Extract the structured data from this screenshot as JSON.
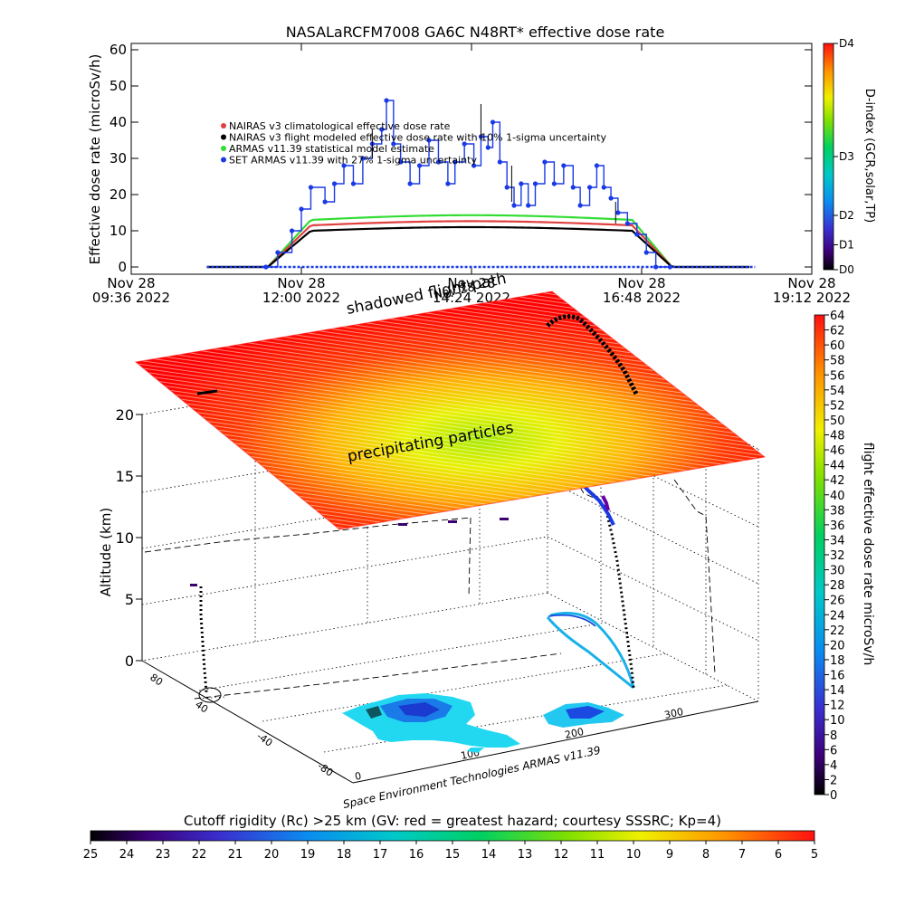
{
  "chart_data": [
    {
      "type": "line",
      "title": "NASALaRCFM7008  GA6C N48RT* effective dose rate",
      "ylabel": "Effective dose rate (microSv/h)",
      "ylim": [
        0,
        60
      ],
      "yticks": [
        "0",
        "10",
        "20",
        "30",
        "40",
        "50",
        "60"
      ],
      "xticks": [
        {
          "t": 576,
          "l1": "Nov 28",
          "l2": "09:36 2022"
        },
        {
          "t": 720,
          "l1": "Nov 28",
          "l2": "12:00 2022"
        },
        {
          "t": 864,
          "l1": "Nov 28",
          "l2": "14:24 2022"
        },
        {
          "t": 1008,
          "l1": "Nov 28",
          "l2": "16:48 2022"
        },
        {
          "t": 1152,
          "l1": "Nov 28",
          "l2": "19:12 2022"
        }
      ],
      "xlim": [
        576,
        1152
      ],
      "legend": [
        {
          "text": "NAIRAS v3 climatological effective dose rate",
          "color": "#e04040"
        },
        {
          "text": "NAIRAS v3 flight modeled effective dose rate with 10% 1-sigma uncertainty",
          "color": "#000000"
        },
        {
          "text": "ARMAS v11.39 statistical model estimate",
          "color": "#33dd33"
        },
        {
          "text": "SET ARMAS v11.39 with 27% 1-sigma uncertainty",
          "color": "#1a3ae6"
        }
      ],
      "colorbar": {
        "label": "D-index (GCR,solar,TP)",
        "ticks": [
          {
            "label": "D0",
            "frac": 0.0
          },
          {
            "label": "D1",
            "frac": 0.11
          },
          {
            "label": "D2",
            "frac": 0.24
          },
          {
            "label": "D3",
            "frac": 0.5
          },
          {
            "label": "D4",
            "frac": 1.0
          }
        ]
      }
    },
    {
      "type": "scatter",
      "zlabel": "Altitude (km)",
      "zticks": [
        "0",
        "5",
        "10",
        "15",
        "20"
      ],
      "zlim": [
        0,
        22
      ],
      "colorbar": {
        "label": "flight effective dose rate microSv/h",
        "min": 0,
        "max": 64,
        "ticks": [
          "0",
          "2",
          "4",
          "6",
          "8",
          "10",
          "12",
          "14",
          "16",
          "18",
          "20",
          "22",
          "24",
          "26",
          "28",
          "30",
          "32",
          "34",
          "36",
          "38",
          "40",
          "42",
          "44",
          "46",
          "48",
          "50",
          "52",
          "54",
          "56",
          "58",
          "60",
          "62",
          "64"
        ]
      },
      "long_ticks": [
        "0",
        "100",
        "200",
        "300"
      ],
      "lat_ticks": [
        "-80",
        "-40",
        "40",
        "80"
      ],
      "annotations": {
        "shadowed": "shadowed flight path",
        "precipitating": "precipitating particles",
        "credit": "Space Environment Technologies ARMAS v11.39",
        "date_label": "Nov 28"
      }
    },
    {
      "type": "heatmap",
      "title": "Cutoff rigidity (Rc) >25 km (GV: red = greatest hazard; courtesy SSSRC; Kp=4)",
      "ticks": [
        "25",
        "24",
        "23",
        "22",
        "21",
        "20",
        "19",
        "18",
        "17",
        "16",
        "15",
        "14",
        "13",
        "12",
        "11",
        "10",
        "9",
        "8",
        "7",
        "6",
        "5"
      ]
    }
  ]
}
